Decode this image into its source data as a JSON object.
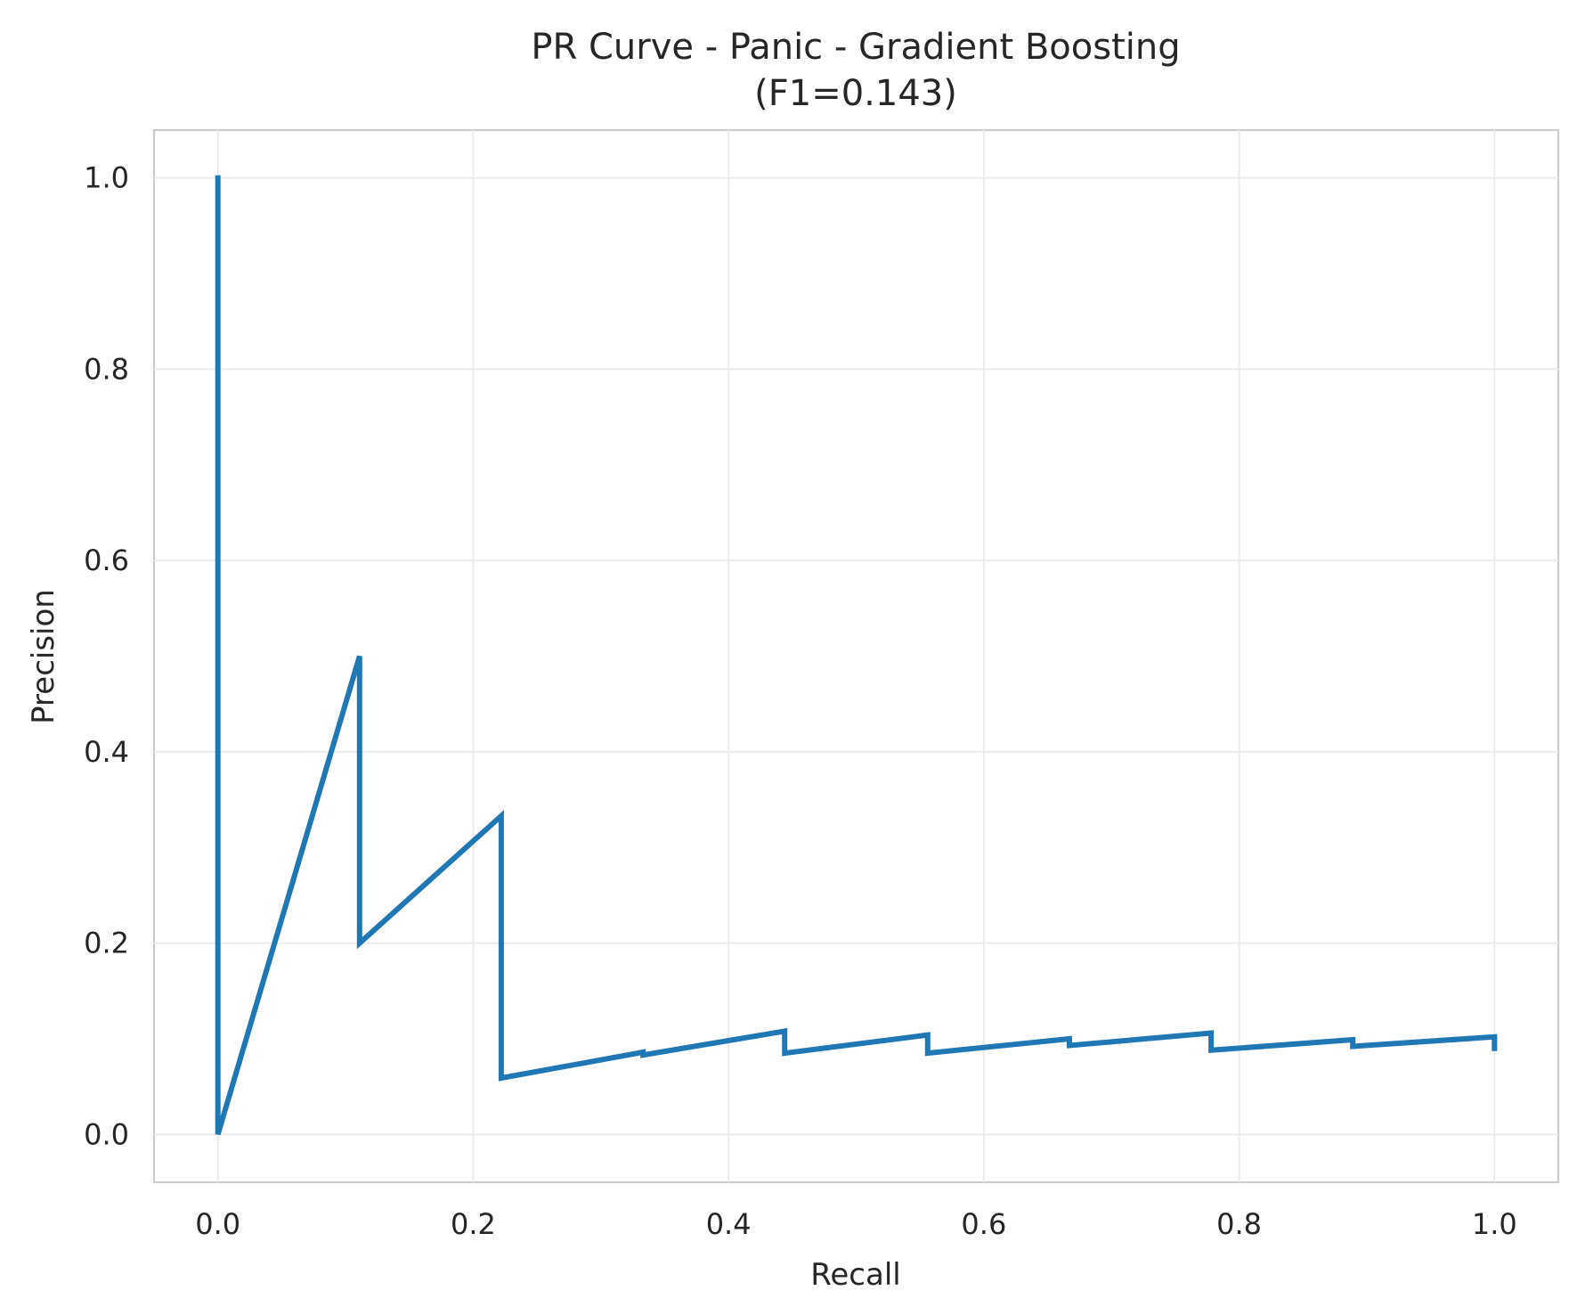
{
  "chart_data": {
    "type": "line",
    "title": "PR Curve - Panic - Gradient Boosting",
    "subtitle": "(F1=0.143)",
    "xlabel": "Recall",
    "ylabel": "Precision",
    "xlim": [
      -0.05,
      1.05
    ],
    "ylim": [
      -0.05,
      1.05
    ],
    "xticks": [
      0.0,
      0.2,
      0.4,
      0.6,
      0.8,
      1.0
    ],
    "xtick_labels": [
      "0.0",
      "0.2",
      "0.4",
      "0.6",
      "0.8",
      "1.0"
    ],
    "yticks": [
      0.0,
      0.2,
      0.4,
      0.6,
      0.8,
      1.0
    ],
    "ytick_labels": [
      "0.0",
      "0.2",
      "0.4",
      "0.6",
      "0.8",
      "1.0"
    ],
    "grid": true,
    "line_color": "#1f77b4",
    "series": [
      {
        "x": [
          0.0,
          0.0,
          0.111,
          0.111,
          0.222,
          0.222,
          0.333,
          0.333,
          0.444,
          0.444,
          0.556,
          0.556,
          0.667,
          0.667,
          0.778,
          0.778,
          0.889,
          0.889,
          1.0,
          1.0
        ],
        "y": [
          1.0,
          0.0,
          0.5,
          0.2,
          0.333,
          0.059,
          0.086,
          0.083,
          0.108,
          0.085,
          0.104,
          0.085,
          0.1,
          0.093,
          0.106,
          0.088,
          0.099,
          0.092,
          0.102,
          0.09
        ]
      }
    ]
  }
}
